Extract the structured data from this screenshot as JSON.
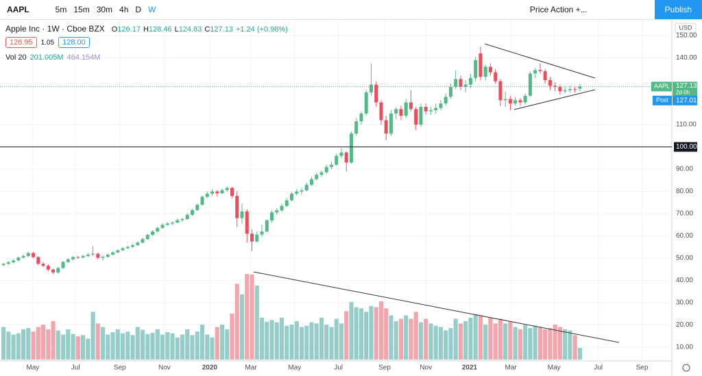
{
  "toolbar": {
    "symbol": "AAPL",
    "intervals": [
      "5m",
      "15m",
      "30m",
      "4h",
      "D",
      "W"
    ],
    "template": "Price Action +...",
    "publish": "Publish"
  },
  "legend": {
    "name": "Apple Inc · 1W · Cboe BZX",
    "ohlc": [
      [
        "O",
        "126.17"
      ],
      [
        "H",
        "128.46"
      ],
      [
        "L",
        "124.83"
      ],
      [
        "C",
        "127.13"
      ]
    ],
    "change": "+1.24 (+0.98%)",
    "bid": "126.95",
    "spread": "1.05",
    "ask": "128.00",
    "vol_name": "Vol 20",
    "vol_value": "201.005M",
    "vol_ma": "464.154M"
  },
  "chart_data": {
    "type": "candlestick",
    "currency": "USD",
    "up_color": "#53b987",
    "down_color": "#eb4d5c",
    "volume_up_color": "#96cdc8",
    "volume_down_color": "#f2a5ac",
    "ylim": [
      3.85,
      157.4
    ],
    "yticks": [
      {
        "value": 10,
        "label": "10.00"
      },
      {
        "value": 20,
        "label": "20.00"
      },
      {
        "value": 30,
        "label": "30.00"
      },
      {
        "value": 40,
        "label": "40.00"
      },
      {
        "value": 50,
        "label": "50.00"
      },
      {
        "value": 60,
        "label": "60.00"
      },
      {
        "value": 70,
        "label": "70.00"
      },
      {
        "value": 80,
        "label": "80.00"
      },
      {
        "value": 90,
        "label": "90.00"
      },
      {
        "value": 110,
        "label": "110.00"
      },
      {
        "value": 140,
        "label": "140.00"
      },
      {
        "value": 150,
        "label": "150.00"
      }
    ],
    "xlim": [
      -0.7,
      134.5
    ],
    "xticks": [
      {
        "value": 5.9,
        "label": "May"
      },
      {
        "value": 14.5,
        "label": "Jul"
      },
      {
        "value": 23.4,
        "label": "Sep"
      },
      {
        "value": 32.4,
        "label": "Nov"
      },
      {
        "value": 41.5,
        "label": "2020"
      },
      {
        "value": 49.8,
        "label": "Mar"
      },
      {
        "value": 58.6,
        "label": "May"
      },
      {
        "value": 67.4,
        "label": "Jul"
      },
      {
        "value": 76.7,
        "label": "Sep"
      },
      {
        "value": 85,
        "label": "Nov"
      },
      {
        "value": 93.8,
        "label": "2021"
      },
      {
        "value": 102.1,
        "label": "Mar"
      },
      {
        "value": 110.8,
        "label": "May"
      },
      {
        "value": 119.7,
        "label": "Jul"
      },
      {
        "value": 128.5,
        "label": "Sep"
      }
    ],
    "hline": {
      "value": 100,
      "label": "100.00"
    },
    "last_price": {
      "name": "AAPL",
      "value": 127.13,
      "label": "127.13",
      "countdown": "2d 0h"
    },
    "post_price": {
      "name": "Post",
      "value": 127.01,
      "label": "127.01"
    },
    "candles": [
      [
        47.0,
        48.0,
        46.2,
        47.5
      ],
      [
        47.5,
        48.8,
        47.0,
        48.2
      ],
      [
        48.2,
        49.6,
        47.6,
        49.0
      ],
      [
        49.0,
        50.8,
        48.5,
        50.3
      ],
      [
        50.3,
        51.6,
        49.8,
        51.0
      ],
      [
        51.0,
        53.0,
        50.5,
        52.3
      ],
      [
        52.3,
        52.8,
        50.0,
        50.5
      ],
      [
        50.5,
        51.0,
        46.8,
        47.5
      ],
      [
        47.5,
        48.3,
        46.0,
        46.6
      ],
      [
        46.6,
        47.2,
        44.2,
        44.9
      ],
      [
        44.9,
        45.4,
        42.8,
        43.6
      ],
      [
        43.6,
        46.2,
        43.0,
        45.6
      ],
      [
        45.6,
        48.8,
        45.2,
        48.3
      ],
      [
        48.3,
        50.0,
        47.8,
        49.5
      ],
      [
        49.5,
        51.0,
        49.0,
        50.5
      ],
      [
        50.5,
        51.1,
        49.7,
        50.3
      ],
      [
        50.3,
        51.6,
        50.0,
        51.0
      ],
      [
        51.0,
        52.3,
        50.6,
        51.6
      ],
      [
        51.6,
        55.5,
        51.0,
        52.0
      ],
      [
        52.0,
        52.5,
        49.5,
        50.2
      ],
      [
        50.2,
        51.2,
        49.0,
        50.6
      ],
      [
        50.6,
        52.0,
        50.2,
        51.6
      ],
      [
        51.6,
        53.2,
        51.2,
        52.6
      ],
      [
        52.6,
        54.0,
        52.2,
        53.6
      ],
      [
        53.6,
        55.0,
        53.2,
        54.5
      ],
      [
        54.5,
        55.6,
        54.0,
        55.1
      ],
      [
        55.1,
        56.5,
        54.6,
        55.9
      ],
      [
        55.9,
        57.6,
        55.5,
        57.0
      ],
      [
        57.0,
        59.2,
        56.6,
        58.6
      ],
      [
        58.6,
        61.0,
        58.2,
        60.5
      ],
      [
        60.5,
        62.6,
        60.0,
        62.0
      ],
      [
        62.0,
        64.2,
        61.6,
        63.6
      ],
      [
        63.6,
        65.8,
        63.2,
        65.0
      ],
      [
        65.0,
        66.2,
        64.5,
        65.6
      ],
      [
        65.6,
        66.6,
        64.8,
        66.0
      ],
      [
        66.0,
        67.8,
        65.6,
        67.1
      ],
      [
        67.1,
        68.2,
        66.4,
        67.6
      ],
      [
        67.6,
        70.2,
        67.2,
        69.5
      ],
      [
        69.5,
        72.2,
        69.0,
        71.6
      ],
      [
        71.6,
        74.6,
        71.2,
        74.0
      ],
      [
        74.0,
        78.2,
        73.6,
        77.6
      ],
      [
        77.6,
        80.0,
        77.0,
        79.0
      ],
      [
        79.0,
        81.0,
        78.0,
        80.0
      ],
      [
        80.0,
        80.6,
        77.8,
        79.2
      ],
      [
        79.2,
        81.4,
        78.8,
        80.6
      ],
      [
        80.6,
        82.4,
        79.8,
        81.6
      ],
      [
        81.6,
        82.0,
        77.0,
        78.0
      ],
      [
        78.0,
        80.2,
        64.0,
        68.0
      ],
      [
        68.0,
        74.5,
        65.5,
        71.0
      ],
      [
        71.0,
        72.0,
        57.0,
        61.0
      ],
      [
        61.0,
        63.0,
        53.2,
        57.5
      ],
      [
        57.5,
        62.0,
        57.0,
        60.6
      ],
      [
        60.6,
        65.0,
        59.5,
        62.0
      ],
      [
        62.0,
        67.5,
        61.5,
        67.0
      ],
      [
        67.0,
        71.5,
        66.0,
        70.6
      ],
      [
        70.6,
        72.5,
        69.5,
        71.5
      ],
      [
        71.5,
        74.5,
        70.8,
        73.5
      ],
      [
        73.5,
        77.0,
        73.0,
        76.0
      ],
      [
        76.0,
        79.8,
        75.5,
        79.0
      ],
      [
        79.0,
        81.0,
        78.2,
        80.0
      ],
      [
        80.0,
        81.5,
        78.5,
        80.5
      ],
      [
        80.5,
        84.0,
        80.0,
        83.0
      ],
      [
        83.0,
        86.5,
        82.5,
        85.5
      ],
      [
        85.5,
        88.5,
        85.0,
        87.5
      ],
      [
        87.5,
        89.5,
        86.5,
        88.6
      ],
      [
        88.6,
        92.0,
        88.0,
        91.0
      ],
      [
        91.0,
        93.5,
        90.0,
        92.0
      ],
      [
        92.0,
        97.0,
        91.5,
        96.0
      ],
      [
        96.0,
        99.5,
        95.0,
        97.5
      ],
      [
        97.5,
        98.0,
        89.0,
        93.0
      ],
      [
        93.0,
        107.0,
        92.5,
        106.0
      ],
      [
        106.0,
        113.0,
        105.0,
        111.5
      ],
      [
        111.5,
        116.0,
        110.0,
        115.0
      ],
      [
        115.0,
        125.5,
        114.0,
        124.5
      ],
      [
        124.5,
        137.5,
        123.0,
        128.0
      ],
      [
        128.0,
        129.5,
        118.0,
        120.0
      ],
      [
        120.0,
        121.0,
        110.0,
        112.0
      ],
      [
        112.0,
        114.0,
        103.0,
        106.0
      ],
      [
        106.0,
        116.5,
        105.0,
        115.0
      ],
      [
        115.0,
        118.0,
        112.5,
        117.0
      ],
      [
        117.0,
        118.5,
        112.0,
        114.0
      ],
      [
        114.0,
        121.5,
        113.0,
        120.0
      ],
      [
        120.0,
        125.5,
        116.0,
        117.0
      ],
      [
        117.0,
        118.0,
        107.5,
        110.0
      ],
      [
        110.0,
        119.5,
        109.0,
        118.0
      ],
      [
        118.0,
        119.5,
        114.5,
        116.0
      ],
      [
        116.0,
        118.0,
        114.5,
        116.5
      ],
      [
        116.5,
        119.5,
        115.0,
        117.5
      ],
      [
        117.5,
        121.0,
        116.5,
        119.5
      ],
      [
        119.5,
        124.0,
        118.5,
        122.5
      ],
      [
        122.5,
        128.5,
        121.5,
        127.0
      ],
      [
        127.0,
        134.5,
        126.0,
        130.5
      ],
      [
        130.5,
        132.0,
        125.5,
        127.0
      ],
      [
        127.0,
        130.0,
        124.5,
        128.0
      ],
      [
        128.0,
        133.0,
        126.5,
        131.0
      ],
      [
        131.0,
        140.5,
        129.5,
        139.0
      ],
      [
        142.0,
        145.0,
        130.0,
        131.5
      ],
      [
        131.5,
        137.0,
        130.0,
        136.0
      ],
      [
        136.0,
        137.5,
        132.0,
        133.5
      ],
      [
        133.5,
        135.0,
        128.5,
        129.5
      ],
      [
        129.5,
        130.5,
        118.5,
        121.0
      ],
      [
        121.0,
        125.0,
        118.0,
        121.5
      ],
      [
        121.5,
        123.0,
        116.5,
        119.5
      ],
      [
        119.5,
        122.5,
        118.5,
        121.0
      ],
      [
        121.0,
        122.0,
        118.5,
        120.0
      ],
      [
        120.0,
        124.0,
        119.0,
        123.0
      ],
      [
        123.0,
        134.0,
        122.5,
        133.0
      ],
      [
        133.0,
        135.5,
        131.0,
        134.5
      ],
      [
        134.5,
        137.5,
        133.0,
        134.0
      ],
      [
        134.0,
        135.0,
        128.5,
        130.0
      ],
      [
        130.0,
        131.5,
        125.5,
        127.5
      ],
      [
        127.5,
        129.0,
        125.0,
        127.0
      ],
      [
        127.0,
        128.0,
        123.5,
        125.0
      ],
      [
        125.0,
        127.0,
        124.0,
        125.5
      ],
      [
        125.5,
        127.5,
        124.5,
        126.0
      ],
      [
        126.0,
        127.0,
        124.5,
        125.9
      ],
      [
        126.17,
        128.46,
        124.83,
        127.13
      ]
    ],
    "volume": [
      560,
      480,
      430,
      450,
      520,
      540,
      480,
      560,
      600,
      520,
      660,
      500,
      430,
      520,
      440,
      400,
      420,
      360,
      820,
      620,
      560,
      430,
      470,
      520,
      450,
      480,
      420,
      560,
      510,
      440,
      460,
      520,
      430,
      470,
      450,
      380,
      430,
      520,
      420,
      480,
      600,
      430,
      380,
      560,
      600,
      520,
      790,
      1300,
      1120,
      1470,
      1460,
      1270,
      720,
      650,
      680,
      640,
      720,
      580,
      600,
      660,
      560,
      580,
      640,
      620,
      720,
      600,
      560,
      700,
      620,
      830,
      990,
      900,
      880,
      820,
      920,
      900,
      1000,
      880,
      760,
      660,
      700,
      760,
      700,
      820,
      640,
      700,
      620,
      580,
      560,
      500,
      540,
      700,
      620,
      660,
      720,
      780,
      760,
      600,
      720,
      620,
      700,
      620,
      650,
      560,
      520,
      600,
      540,
      580,
      560,
      520,
      540,
      600,
      560,
      520,
      500,
      420,
      201.005
    ]
  }
}
